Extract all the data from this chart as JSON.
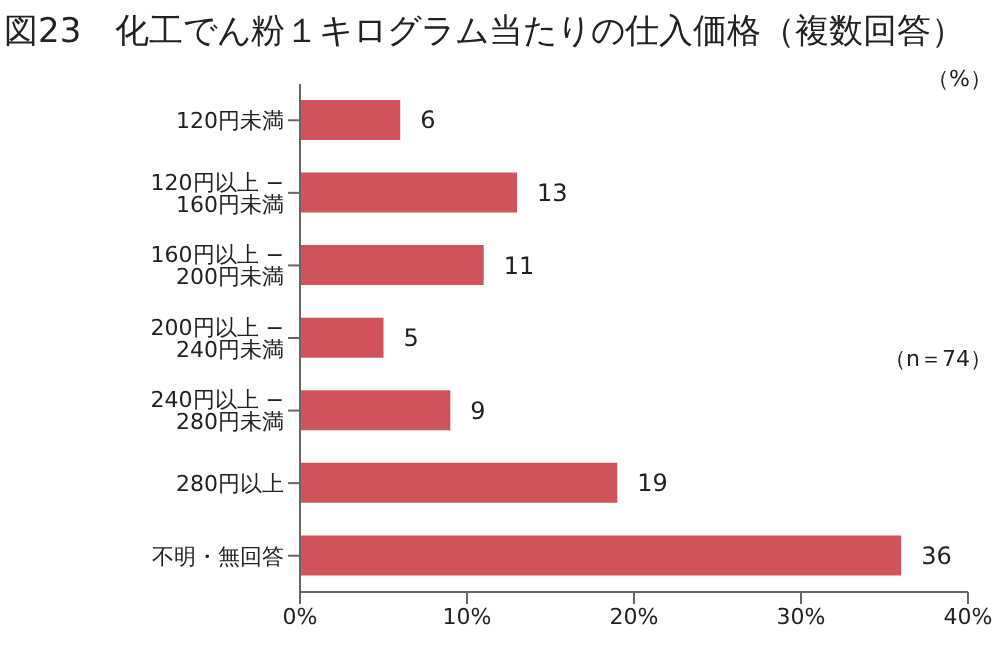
{
  "chart_data": {
    "type": "bar",
    "orientation": "horizontal",
    "title": "図23　化工でん粉１キログラム当たりの仕入価格（複数回答）",
    "categories": [
      "120円未満",
      "120円以上 − 160円未満",
      "160円以上 − 200円未満",
      "200円以上 − 240円未満",
      "240円以上 − 280円未満",
      "280円以上",
      "不明・無回答"
    ],
    "values": [
      6,
      13,
      11,
      5,
      9,
      19,
      36
    ],
    "color": "#cf535a",
    "data_labels": true,
    "xlim": [
      0,
      40
    ],
    "xticks": [
      {
        "value": 0,
        "label": "0%"
      },
      {
        "value": 10,
        "label": "10%"
      },
      {
        "value": 20,
        "label": "20%"
      },
      {
        "value": 30,
        "label": "30%"
      },
      {
        "value": 40,
        "label": "40%"
      }
    ],
    "grid": false,
    "annotations": [
      "（%）",
      "（n＝74）"
    ]
  }
}
